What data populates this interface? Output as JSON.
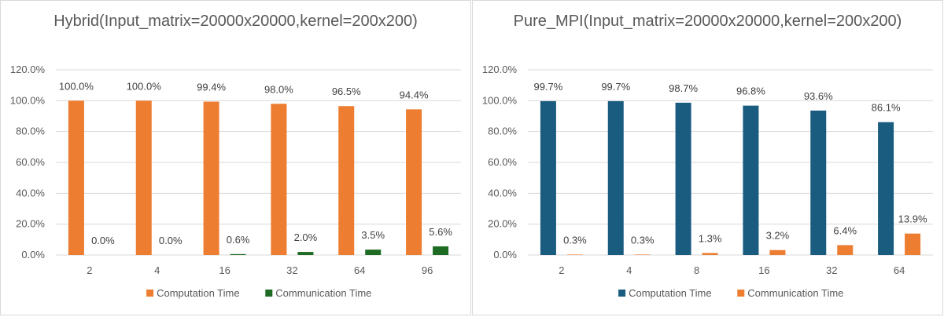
{
  "chart_data": [
    {
      "type": "bar",
      "title": "Hybrid(Input_matrix=20000x20000,kernel=200x200)",
      "categories": [
        "2",
        "4",
        "16",
        "32",
        "64",
        "96"
      ],
      "series": [
        {
          "name": "Computation Time",
          "color": "#ED7D31",
          "values": [
            100.0,
            100.0,
            99.4,
            98.0,
            96.5,
            94.4
          ],
          "labels": [
            "100.0%",
            "100.0%",
            "99.4%",
            "98.0%",
            "96.5%",
            "94.4%"
          ]
        },
        {
          "name": "Communication Time",
          "color": "#1E6B24",
          "values": [
            0.0,
            0.0,
            0.6,
            2.0,
            3.5,
            5.6
          ],
          "labels": [
            "0.0%",
            "0.0%",
            "0.6%",
            "2.0%",
            "3.5%",
            "5.6%"
          ]
        }
      ],
      "ylim": [
        0,
        120
      ],
      "yticks": [
        "0.0%",
        "20.0%",
        "40.0%",
        "60.0%",
        "80.0%",
        "100.0%",
        "120.0%"
      ],
      "xlabel": "",
      "ylabel": "",
      "grid": true,
      "legend": "bottom"
    },
    {
      "type": "bar",
      "title": "Pure_MPI(Input_matrix=20000x20000,kernel=200x200)",
      "categories": [
        "2",
        "4",
        "8",
        "16",
        "32",
        "64"
      ],
      "series": [
        {
          "name": "Computation Time",
          "color": "#1A5C80",
          "values": [
            99.7,
            99.7,
            98.7,
            96.8,
            93.6,
            86.1
          ],
          "labels": [
            "99.7%",
            "99.7%",
            "98.7%",
            "96.8%",
            "93.6%",
            "86.1%"
          ]
        },
        {
          "name": "Communication Time",
          "color": "#ED7D31",
          "values": [
            0.3,
            0.3,
            1.3,
            3.2,
            6.4,
            13.9
          ],
          "labels": [
            "0.3%",
            "0.3%",
            "1.3%",
            "3.2%",
            "6.4%",
            "13.9%"
          ]
        }
      ],
      "ylim": [
        0,
        120
      ],
      "yticks": [
        "0.0%",
        "20.0%",
        "40.0%",
        "60.0%",
        "80.0%",
        "100.0%",
        "120.0%"
      ],
      "xlabel": "",
      "ylabel": "",
      "grid": true,
      "legend": "bottom"
    }
  ]
}
